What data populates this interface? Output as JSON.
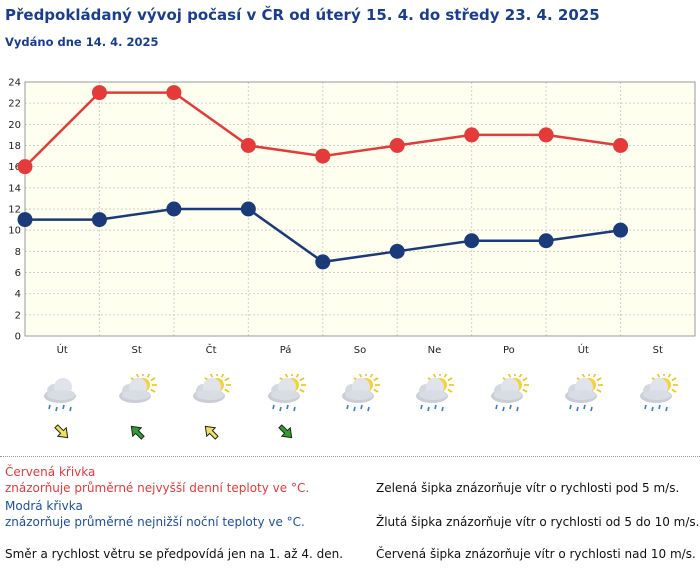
{
  "header": {
    "title": "Předpokládaný vývoj počasí v ČR od úterý 15. 4. do středy 23. 4. 2025",
    "subtitle": "Vydáno dne 14. 4. 2025"
  },
  "chart_data": {
    "type": "line",
    "categories": [
      "Út",
      "St",
      "Čt",
      "Pá",
      "So",
      "Ne",
      "Po",
      "Út",
      "St"
    ],
    "series": [
      {
        "values": [
          16,
          23,
          23,
          18,
          17,
          18,
          19,
          19,
          18
        ],
        "color": "#e53a3a"
      },
      {
        "values": [
          11,
          11,
          12,
          12,
          7,
          8,
          9,
          9,
          10
        ],
        "color": "#1a3a7a"
      }
    ],
    "yticks": [
      "0",
      "2",
      "4",
      "6",
      "8",
      "10",
      "12",
      "14",
      "16",
      "18",
      "20",
      "22",
      "24"
    ],
    "ylim": [
      0,
      24
    ],
    "grid": true,
    "plot_background": "#fffff0"
  },
  "forecast": {
    "weather_icons": [
      "cloud-rain-icon",
      "partly-sunny-icon",
      "partly-sunny-icon",
      "sun-cloud-rain-icon",
      "sun-rain-icon",
      "sun-rain-icon",
      "sun-cloud-rain-icon",
      "sun-rain-icon",
      "sun-cloud-rain-icon"
    ],
    "wind_arrows": [
      {
        "color": "yellow",
        "direction": "southeast"
      },
      {
        "color": "green",
        "direction": "northwest"
      },
      {
        "color": "yellow",
        "direction": "northwest"
      },
      {
        "color": "green",
        "direction": "southeast"
      }
    ]
  },
  "legend": {
    "red_title": "Červená křivka",
    "red_text": "znázorňuje průměrné nejvyšší denní teploty ve °C.",
    "blue_title": "Modrá křivka",
    "blue_text": "znázorňuje průměrné nejnižší noční teploty ve °C.",
    "wind_note": "Směr a rychlost větru se předpovídá jen na 1. až 4. den.",
    "green_arrow": "Zelená šipka znázorňuje vítr o rychlosti pod 5 m/s.",
    "yellow_arrow": "Žlutá šipka znázorňuje vítr o rychlosti od 5 do 10 m/s.",
    "red_arrow": "Červená šipka znázorňuje vítr o rychlosti nad 10 m/s."
  },
  "colors": {
    "title": "#1a3d8f",
    "red_line": "#e53a3a",
    "blue_line": "#1a3a7a",
    "green_arrow": "#2e9e2e",
    "yellow_arrow": "#f0e060"
  }
}
